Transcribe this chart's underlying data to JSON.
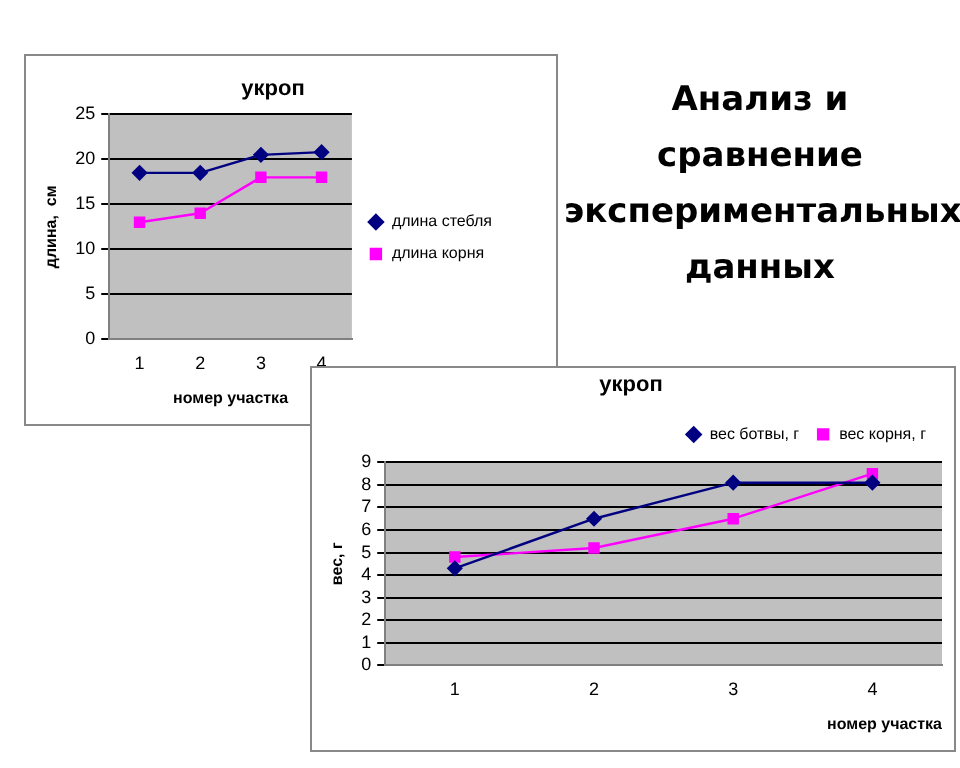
{
  "chart_data": [
    {
      "type": "line",
      "title": "укроп",
      "xlabel": "номер участка",
      "ylabel": "длина,  см",
      "categories": [
        "1",
        "2",
        "3",
        "4"
      ],
      "ylim": [
        0,
        25
      ],
      "yticks": [
        0,
        5,
        10,
        15,
        20,
        25
      ],
      "grid": "y",
      "legend": "right",
      "series": [
        {
          "name": "длина стебля",
          "color": "#000080",
          "marker": "diamond",
          "values": [
            18.5,
            18.5,
            20.5,
            20.8
          ]
        },
        {
          "name": "длина корня",
          "color": "#ff00ff",
          "marker": "square",
          "values": [
            13,
            14,
            18,
            18
          ]
        }
      ]
    },
    {
      "type": "other",
      "title": "Анализ и сравнение экспериментальных данных"
    },
    {
      "type": "line",
      "title": "укроп",
      "xlabel": "номер участка",
      "ylabel": "вес, г",
      "categories": [
        "1",
        "2",
        "3",
        "4"
      ],
      "ylim": [
        0,
        9
      ],
      "yticks": [
        0,
        1,
        2,
        3,
        4,
        5,
        6,
        7,
        8,
        9
      ],
      "grid": "y",
      "legend": "top right",
      "series": [
        {
          "name": "вес ботвы, г",
          "color": "#000080",
          "marker": "diamond",
          "values": [
            4.3,
            6.5,
            8.1,
            8.1
          ]
        },
        {
          "name": "вес корня, г",
          "color": "#ff00ff",
          "marker": "square",
          "values": [
            4.8,
            5.2,
            6.5,
            8.5
          ]
        }
      ]
    }
  ]
}
